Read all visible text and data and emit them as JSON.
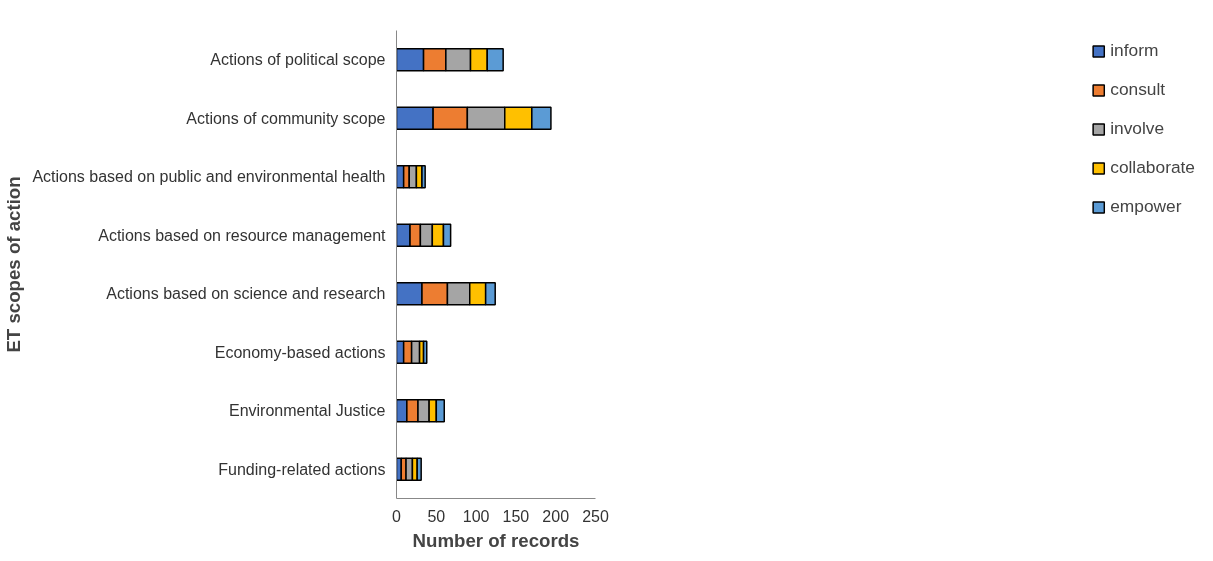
{
  "chart_data": {
    "type": "bar",
    "orientation": "horizontal",
    "stacked": true,
    "xlabel": "Number of records",
    "ylabel": "ET scopes of action",
    "categories": [
      "Actions of political scope",
      "Actions of community scope",
      "Actions based on public and environmental health",
      "Actions based on resource management",
      "Actions based on science and research",
      "Economy-based actions",
      "Environmental Justice",
      "Funding-related actions"
    ],
    "series": [
      {
        "name": "inform",
        "color": "#4472c4",
        "values": [
          34,
          46,
          9,
          17,
          32,
          9,
          13,
          6
        ]
      },
      {
        "name": "consult",
        "color": "#ed7d31",
        "values": [
          28,
          43,
          7,
          13,
          32,
          10,
          14,
          6
        ]
      },
      {
        "name": "involve",
        "color": "#a5a5a5",
        "values": [
          31,
          47,
          9,
          15,
          28,
          10,
          14,
          8
        ]
      },
      {
        "name": "collaborate",
        "color": "#ffc000",
        "values": [
          21,
          34,
          7,
          14,
          20,
          5,
          9,
          6
        ]
      },
      {
        "name": "empower",
        "color": "#5b9bd5",
        "values": [
          20,
          24,
          4,
          9,
          12,
          4,
          10,
          5
        ]
      }
    ],
    "xlim": [
      0,
      250
    ],
    "xticks": [
      0,
      50,
      100,
      150,
      200,
      250
    ],
    "grid": false,
    "legend": "right"
  }
}
